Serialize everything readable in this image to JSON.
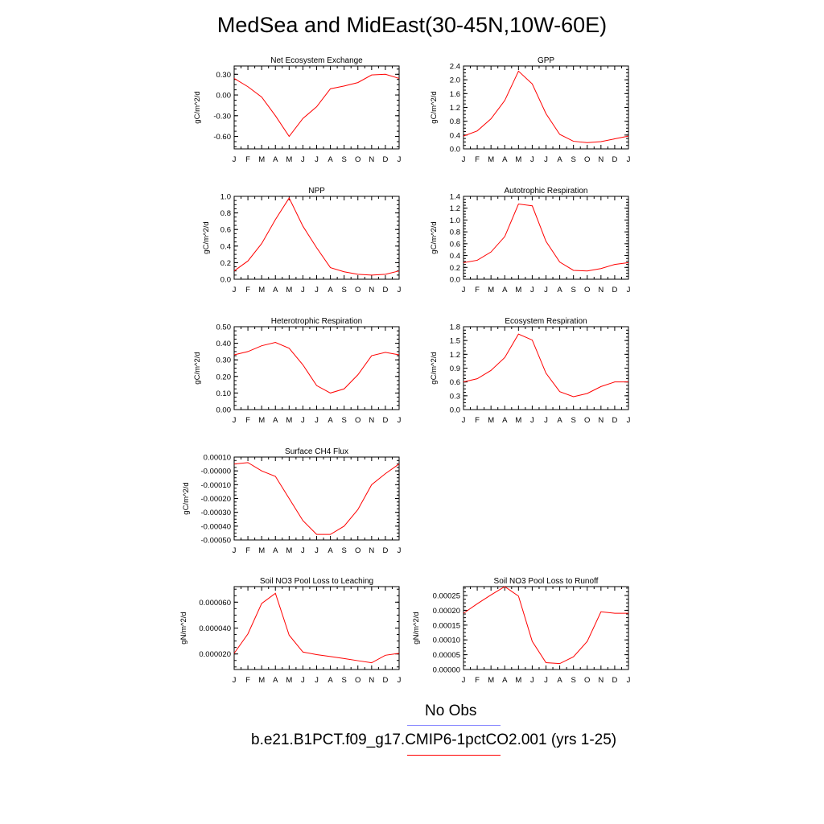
{
  "title": "MedSea and MidEast(30-45N,10W-60E)",
  "colors": {
    "model": "#ff0000",
    "obs": "#8c8cff",
    "axis": "#000000"
  },
  "legend": {
    "obs_label": "No Obs",
    "model_label": "b.e21.B1PCT.f09_g17.CMIP6-1pctCO2.001 (yrs 1-25)"
  },
  "chart_data": [
    {
      "type": "line",
      "title": "Net Ecosystem Exchange",
      "ylabel": "gC/m^2/d",
      "x": [
        "J",
        "F",
        "M",
        "A",
        "M",
        "J",
        "J",
        "A",
        "S",
        "O",
        "N",
        "D",
        "J"
      ],
      "yticks": [
        -0.6,
        -0.3,
        0.0,
        0.3
      ],
      "ytick_labels": [
        "-0.60",
        "-0.30",
        "0.00",
        "0.30"
      ],
      "ylim": [
        -0.78,
        0.42
      ],
      "values": [
        0.24,
        0.12,
        -0.03,
        -0.3,
        -0.6,
        -0.34,
        -0.17,
        0.09,
        0.13,
        0.18,
        0.29,
        0.3,
        0.24
      ]
    },
    {
      "type": "line",
      "title": "GPP",
      "ylabel": "gC/m^2/d",
      "x": [
        "J",
        "F",
        "M",
        "A",
        "M",
        "J",
        "J",
        "A",
        "S",
        "O",
        "N",
        "D",
        "J"
      ],
      "yticks": [
        0.0,
        0.4,
        0.8,
        1.2,
        1.6,
        2.0,
        2.4
      ],
      "ytick_labels": [
        "0.0",
        "0.4",
        "0.8",
        "1.2",
        "1.6",
        "2.0",
        "2.4"
      ],
      "ylim": [
        0.0,
        2.4
      ],
      "values": [
        0.37,
        0.52,
        0.87,
        1.4,
        2.25,
        1.88,
        1.02,
        0.42,
        0.22,
        0.18,
        0.21,
        0.29,
        0.37
      ]
    },
    {
      "type": "line",
      "title": "NPP",
      "ylabel": "gC/m^2/d",
      "x": [
        "J",
        "F",
        "M",
        "A",
        "M",
        "J",
        "J",
        "A",
        "S",
        "O",
        "N",
        "D",
        "J"
      ],
      "yticks": [
        0.0,
        0.2,
        0.4,
        0.6,
        0.8,
        1.0
      ],
      "ytick_labels": [
        "0.0",
        "0.2",
        "0.4",
        "0.6",
        "0.8",
        "1.0"
      ],
      "ylim": [
        0.0,
        1.0
      ],
      "values": [
        0.1,
        0.22,
        0.43,
        0.72,
        0.98,
        0.64,
        0.38,
        0.14,
        0.09,
        0.06,
        0.05,
        0.06,
        0.1
      ]
    },
    {
      "type": "line",
      "title": "Autotrophic Respiration",
      "ylabel": "gC/m^2/d",
      "x": [
        "J",
        "F",
        "M",
        "A",
        "M",
        "J",
        "J",
        "A",
        "S",
        "O",
        "N",
        "D",
        "J"
      ],
      "yticks": [
        0.0,
        0.2,
        0.4,
        0.6,
        0.8,
        1.0,
        1.2,
        1.4
      ],
      "ytick_labels": [
        "0.0",
        "0.2",
        "0.4",
        "0.6",
        "0.8",
        "1.0",
        "1.2",
        "1.4"
      ],
      "ylim": [
        0.0,
        1.4
      ],
      "values": [
        0.28,
        0.32,
        0.46,
        0.72,
        1.27,
        1.24,
        0.64,
        0.29,
        0.15,
        0.14,
        0.18,
        0.25,
        0.28
      ]
    },
    {
      "type": "line",
      "title": "Heterotrophic Respiration",
      "ylabel": "gC/m^2/d",
      "x": [
        "J",
        "F",
        "M",
        "A",
        "M",
        "J",
        "J",
        "A",
        "S",
        "O",
        "N",
        "D",
        "J"
      ],
      "yticks": [
        0.0,
        0.1,
        0.2,
        0.3,
        0.4,
        0.5
      ],
      "ytick_labels": [
        "0.00",
        "0.10",
        "0.20",
        "0.30",
        "0.40",
        "0.50"
      ],
      "ylim": [
        0.0,
        0.5
      ],
      "values": [
        0.33,
        0.35,
        0.385,
        0.405,
        0.37,
        0.27,
        0.145,
        0.1,
        0.125,
        0.21,
        0.325,
        0.345,
        0.33
      ]
    },
    {
      "type": "line",
      "title": "Ecosystem Respiration",
      "ylabel": "gC/m^2/d",
      "x": [
        "J",
        "F",
        "M",
        "A",
        "M",
        "J",
        "J",
        "A",
        "S",
        "O",
        "N",
        "D",
        "J"
      ],
      "yticks": [
        0.0,
        0.3,
        0.6,
        0.9,
        1.2,
        1.5,
        1.8
      ],
      "ytick_labels": [
        "0.0",
        "0.3",
        "0.6",
        "0.9",
        "1.2",
        "1.5",
        "1.8"
      ],
      "ylim": [
        0.0,
        1.8
      ],
      "values": [
        0.6,
        0.67,
        0.85,
        1.13,
        1.64,
        1.51,
        0.79,
        0.39,
        0.28,
        0.35,
        0.5,
        0.6,
        0.6
      ]
    },
    {
      "type": "line",
      "title": "Surface CH4 Flux",
      "ylabel": "gC/m^2/d",
      "x": [
        "J",
        "F",
        "M",
        "A",
        "M",
        "J",
        "J",
        "A",
        "S",
        "O",
        "N",
        "D",
        "J"
      ],
      "yticks": [
        -0.0005,
        -0.0004,
        -0.0003,
        -0.0002,
        -0.0001,
        0.0,
        0.0001
      ],
      "ytick_labels": [
        "-0.00050",
        "-0.00040",
        "-0.00030",
        "-0.00020",
        "-0.00010",
        "-0.00000",
        "0.00010"
      ],
      "ylim": [
        -0.0005,
        0.0001
      ],
      "values": [
        5e-05,
        6e-05,
        0.0,
        -4e-05,
        -0.0002,
        -0.00036,
        -0.00046,
        -0.00046,
        -0.0004,
        -0.00028,
        -0.0001,
        -2e-05,
        5e-05
      ]
    },
    {
      "type": "line",
      "title": "Soil NO3 Pool Loss to Leaching",
      "ylabel": "gN/m^2/d",
      "x": [
        "J",
        "F",
        "M",
        "A",
        "M",
        "J",
        "J",
        "A",
        "S",
        "O",
        "N",
        "D",
        "J"
      ],
      "yticks": [
        2e-05,
        4e-05,
        6e-05
      ],
      "ytick_labels": [
        "0.000020",
        "0.000040",
        "0.000060"
      ],
      "ylim": [
        8e-06,
        7.2e-05
      ],
      "values": [
        2.05e-05,
        3.55e-05,
        5.9e-05,
        6.68e-05,
        3.45e-05,
        2.15e-05,
        1.95e-05,
        1.8e-05,
        1.65e-05,
        1.48e-05,
        1.32e-05,
        1.9e-05,
        2.05e-05
      ]
    },
    {
      "type": "line",
      "title": "Soil NO3 Pool Loss to Runoff",
      "ylabel": "gN/m^2/d",
      "x": [
        "J",
        "F",
        "M",
        "A",
        "M",
        "J",
        "J",
        "A",
        "S",
        "O",
        "N",
        "D",
        "J"
      ],
      "yticks": [
        0.0,
        5e-05,
        0.0001,
        0.00015,
        0.0002,
        0.00025
      ],
      "ytick_labels": [
        "0.00000",
        "0.00005",
        "0.00010",
        "0.00015",
        "0.00020",
        "0.00025"
      ],
      "ylim": [
        0.0,
        0.00028
      ],
      "values": [
        0.00019,
        0.000222,
        0.000252,
        0.00028,
        0.000248,
        9.5e-05,
        2.3e-05,
        2e-05,
        4.3e-05,
        9.5e-05,
        0.000195,
        0.00019,
        0.00019
      ]
    }
  ]
}
